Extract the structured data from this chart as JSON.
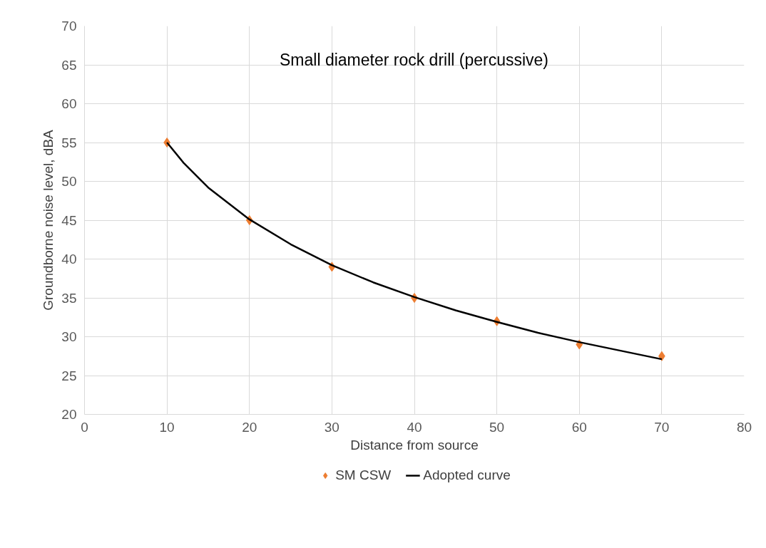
{
  "chart_data": {
    "type": "scatter",
    "title": "Small diameter rock drill (percussive)",
    "xlabel": "Distance from source",
    "ylabel": "Groundborne noise level, dBA",
    "xlim": [
      0,
      80
    ],
    "xticks": [
      0,
      10,
      20,
      30,
      40,
      50,
      60,
      70,
      80
    ],
    "ylim": [
      20,
      70
    ],
    "yticks": [
      20,
      25,
      30,
      35,
      40,
      45,
      50,
      55,
      60,
      65,
      70
    ],
    "grid": true,
    "legend": "bottom",
    "series": [
      {
        "name": "SM CSW",
        "marker": "diamond",
        "color": "#ed7d31",
        "x": [
          10,
          20,
          30,
          40,
          50,
          60,
          70
        ],
        "values": [
          55,
          45,
          39,
          35,
          32,
          29,
          27.5
        ]
      },
      {
        "name": "Adopted curve",
        "type": "line",
        "marker": "none",
        "line_style": "solid",
        "color": "#000000",
        "x": [
          10,
          12,
          15,
          20,
          25,
          30,
          35,
          40,
          45,
          50,
          55,
          60,
          65,
          70
        ],
        "values": [
          55.0,
          52.4,
          49.2,
          45.1,
          41.9,
          39.2,
          37.0,
          35.1,
          33.4,
          31.9,
          30.5,
          29.3,
          28.2,
          27.1
        ]
      }
    ]
  }
}
